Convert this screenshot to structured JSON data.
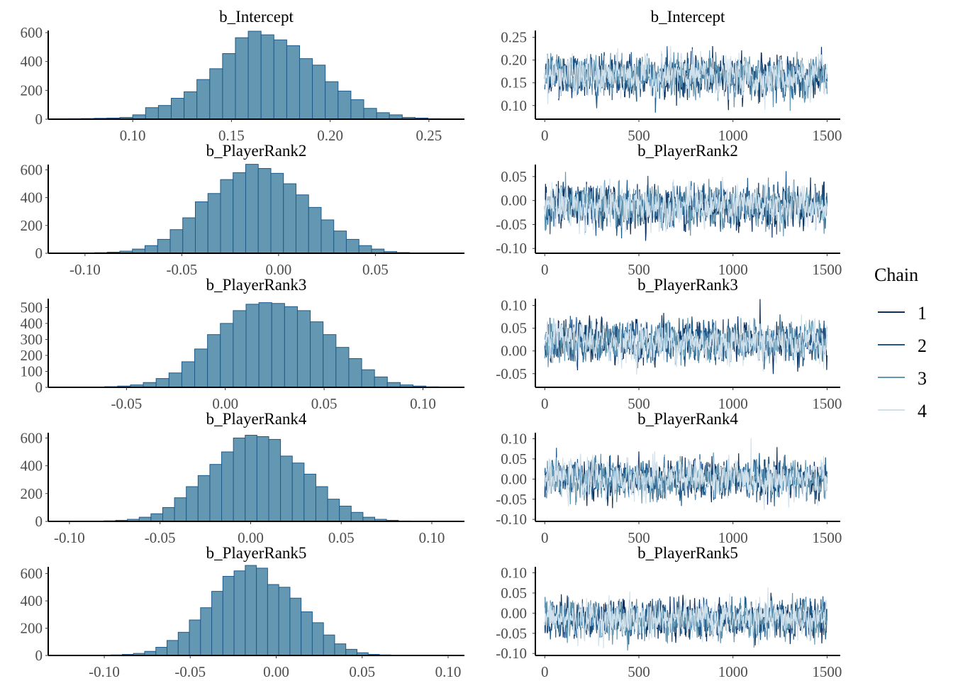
{
  "chart_data": {
    "type": "bar",
    "description_kind": "posterior histograms and MCMC trace plots",
    "colors": {
      "hist_fill": "#6497b1",
      "hist_stroke": "#1f5a8a",
      "chains": [
        "#0b2f5e",
        "#1f5a8a",
        "#6497b1",
        "#d1e1ec"
      ]
    },
    "legend": {
      "title": "Chain",
      "items": [
        "1",
        "2",
        "3",
        "4"
      ],
      "placement": "right"
    },
    "panels": [
      {
        "title": "b_Intercept",
        "hist": {
          "bin_start": 0.0545,
          "bin_width": 0.0065,
          "counts": [
            1,
            2,
            3,
            4,
            6,
            8,
            12,
            30,
            80,
            95,
            145,
            190,
            275,
            350,
            455,
            565,
            610,
            585,
            550,
            510,
            420,
            375,
            260,
            195,
            135,
            75,
            45,
            30,
            12,
            8,
            3,
            1
          ],
          "xlim": [
            0.0572,
            0.268
          ],
          "xticks": [
            "0.10",
            "0.15",
            "0.20",
            "0.25"
          ],
          "ylim": [
            0,
            615
          ],
          "yticks": [
            "0",
            "200",
            "400",
            "600"
          ]
        },
        "trace": {
          "mean": 0.165,
          "sd": 0.025,
          "ylim": [
            0.07,
            0.265
          ],
          "yticks": [
            "0.10",
            "0.15",
            "0.20",
            "0.25"
          ]
        }
      },
      {
        "title": "b_PlayerRank2",
        "hist": {
          "bin_start": -0.108,
          "bin_width": 0.0065,
          "counts": [
            1,
            2,
            4,
            8,
            15,
            30,
            55,
            100,
            170,
            255,
            370,
            430,
            530,
            580,
            640,
            610,
            575,
            500,
            420,
            330,
            240,
            160,
            100,
            55,
            30,
            12,
            5,
            2
          ],
          "xlim": [
            -0.119,
            0.096
          ],
          "xticks": [
            "-0.10",
            "-0.05",
            "0.00",
            "0.05"
          ],
          "ylim": [
            0,
            638
          ],
          "yticks": [
            "0",
            "200",
            "400",
            "600"
          ]
        },
        "trace": {
          "mean": -0.012,
          "sd": 0.025,
          "ylim": [
            -0.11,
            0.075
          ],
          "yticks": [
            "-0.10",
            "-0.05",
            "0.00",
            "0.05"
          ]
        }
      },
      {
        "title": "b_PlayerRank3",
        "hist": {
          "bin_start": -0.074,
          "bin_width": 0.0065,
          "counts": [
            1,
            2,
            4,
            8,
            15,
            30,
            55,
            90,
            160,
            240,
            330,
            400,
            480,
            520,
            530,
            525,
            505,
            480,
            410,
            330,
            250,
            180,
            110,
            65,
            30,
            15,
            8,
            3
          ],
          "xlim": [
            -0.0896,
            0.121
          ],
          "xticks": [
            "-0.05",
            "0.00",
            "0.05",
            "0.10"
          ],
          "ylim": [
            0,
            555
          ],
          "yticks": [
            "0",
            "100",
            "200",
            "300",
            "400",
            "500"
          ]
        },
        "trace": {
          "mean": 0.02,
          "sd": 0.025,
          "ylim": [
            -0.08,
            0.115
          ],
          "yticks": [
            "-0.05",
            "0.00",
            "0.05",
            "0.10"
          ]
        }
      },
      {
        "title": "b_PlayerRank4",
        "hist": {
          "bin_start": -0.094,
          "bin_width": 0.0065,
          "counts": [
            1,
            2,
            4,
            8,
            15,
            30,
            55,
            100,
            170,
            250,
            330,
            410,
            500,
            600,
            620,
            610,
            590,
            470,
            420,
            340,
            250,
            160,
            110,
            65,
            30,
            15,
            8,
            3
          ],
          "xlim": [
            -0.1117,
            0.118
          ],
          "xticks": [
            "-0.10",
            "-0.05",
            "0.00",
            "0.05",
            "0.10"
          ],
          "ylim": [
            0,
            638
          ],
          "yticks": [
            "0",
            "200",
            "400",
            "600"
          ]
        },
        "trace": {
          "mean": 0.0,
          "sd": 0.027,
          "ylim": [
            -0.105,
            0.115
          ],
          "yticks": [
            "-0.10",
            "-0.05",
            "0.00",
            "0.05",
            "0.10"
          ]
        }
      },
      {
        "title": "b_PlayerRank5",
        "hist": {
          "bin_start": -0.109,
          "bin_width": 0.0065,
          "counts": [
            1,
            2,
            4,
            8,
            15,
            30,
            60,
            110,
            170,
            260,
            350,
            470,
            580,
            620,
            660,
            640,
            520,
            500,
            420,
            320,
            240,
            150,
            85,
            45,
            20,
            8,
            4,
            2
          ],
          "xlim": [
            -0.1326,
            0.1095
          ],
          "xticks": [
            "-0.10",
            "-0.05",
            "0.00",
            "0.05",
            "0.10"
          ],
          "ylim": [
            0,
            650
          ],
          "yticks": [
            "0",
            "200",
            "400",
            "600"
          ]
        },
        "trace": {
          "mean": -0.015,
          "sd": 0.027,
          "ylim": [
            -0.105,
            0.115
          ],
          "yticks": [
            "-0.10",
            "-0.05",
            "0.00",
            "0.05",
            "0.10"
          ]
        }
      }
    ],
    "trace_x": {
      "iterations": 1500,
      "xlim": [
        -50,
        1570
      ],
      "xticks": [
        "0",
        "500",
        "1000",
        "1500"
      ]
    }
  }
}
